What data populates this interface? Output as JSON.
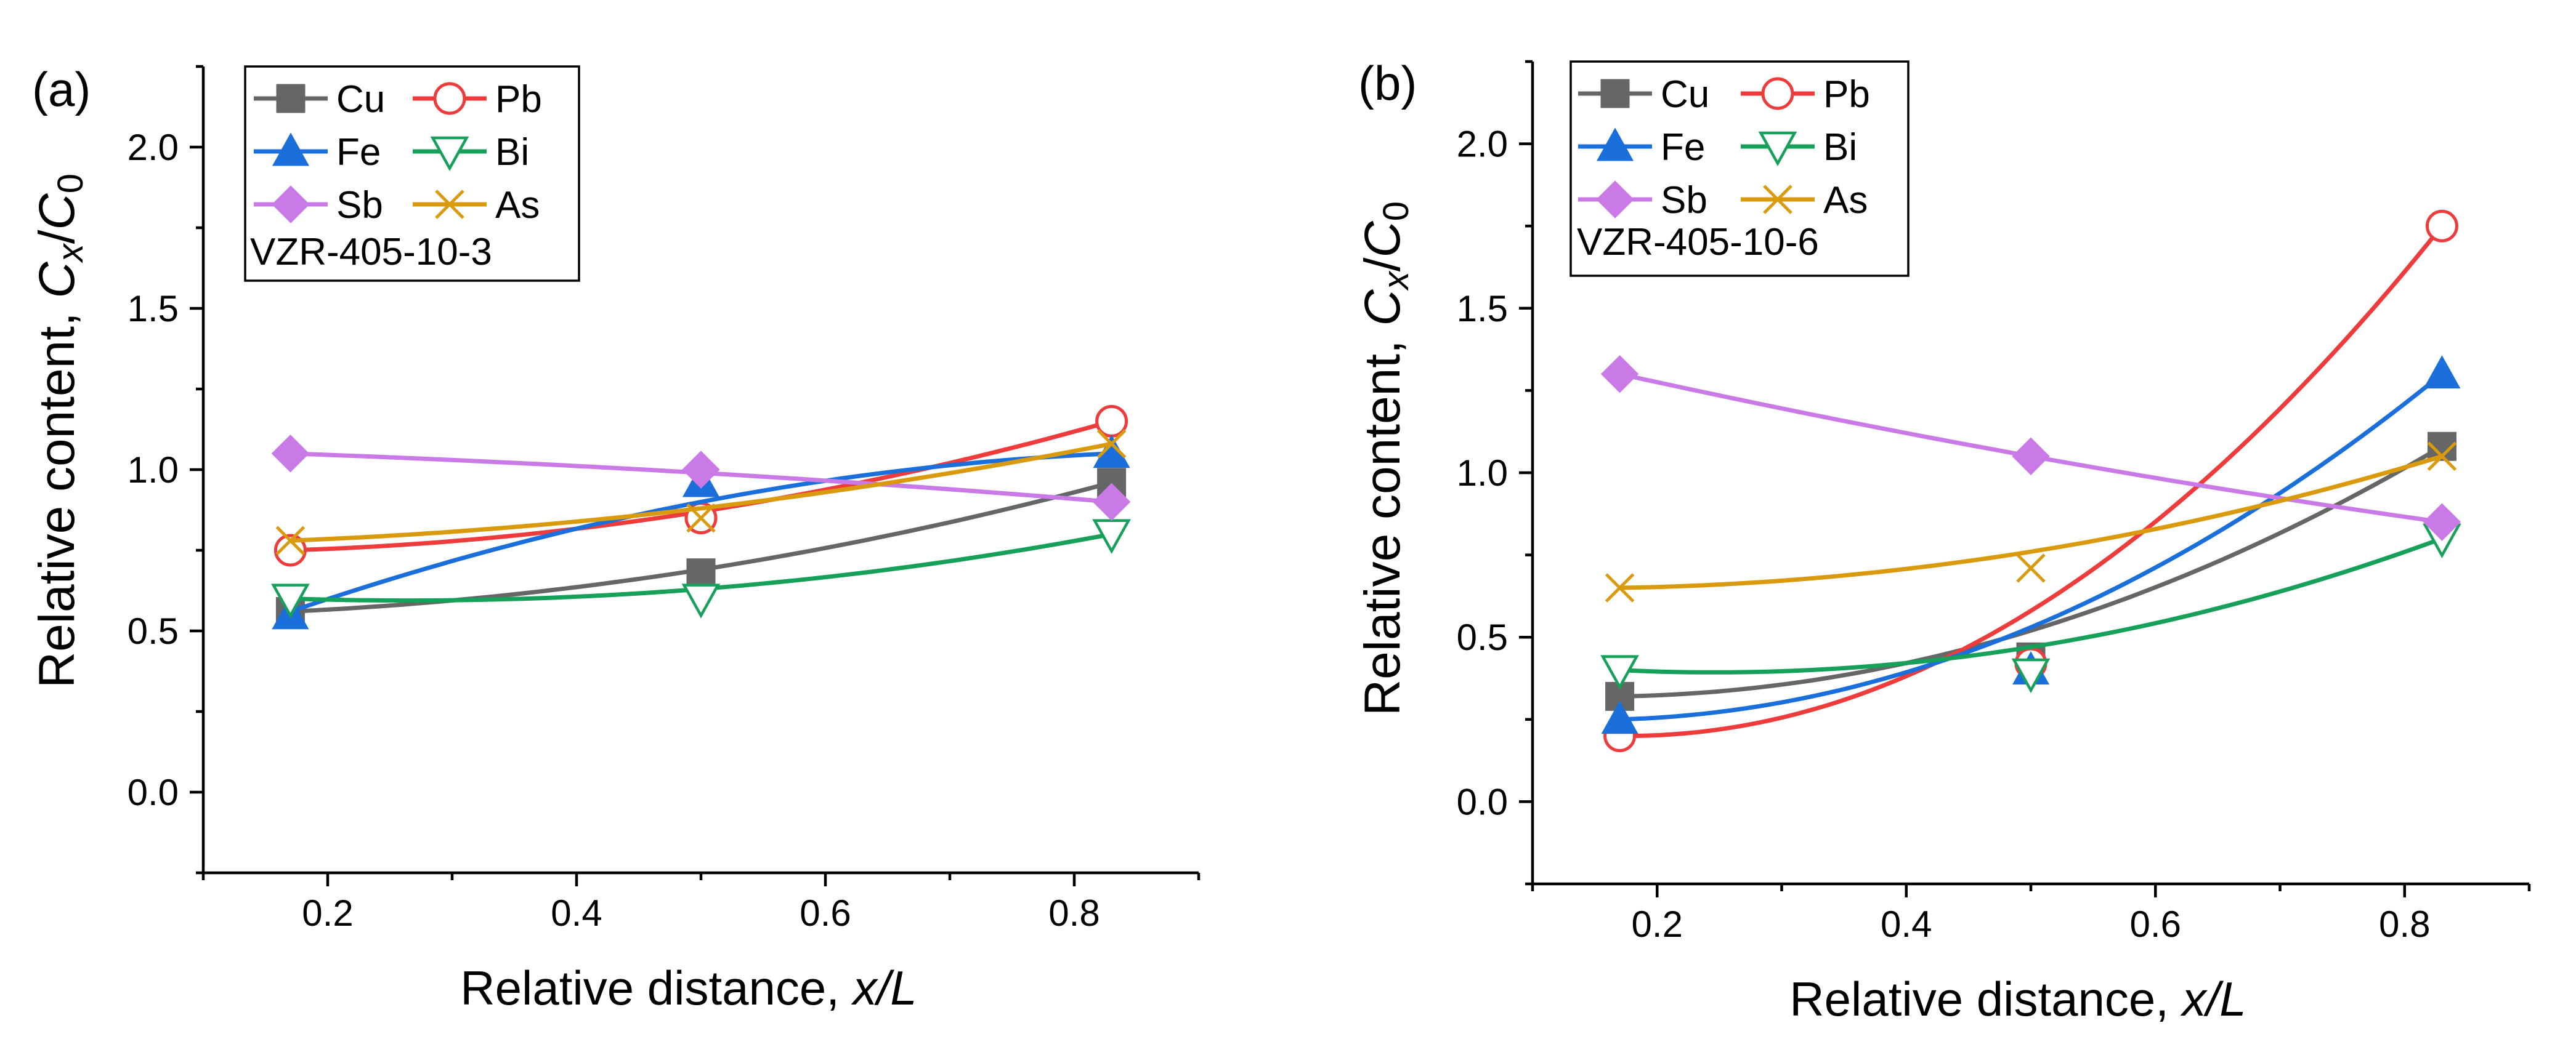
{
  "figure": {
    "x_axis_label_prefix": "Relative distance, ",
    "x_axis_label_var": "x/L",
    "y_axis_label_prefix": "Relative content, ",
    "y_axis_label_var_c": "C",
    "y_axis_label_sub_x": "x",
    "y_axis_label_slash": "/",
    "y_axis_label_sub_0": "0"
  },
  "colors": {
    "Cu": "#666666",
    "Pb": "#ee3b3b",
    "Fe": "#1a6fdb",
    "Bi": "#16a05a",
    "Sb": "#c97ae6",
    "As": "#d99a0e"
  },
  "chart_data": [
    {
      "type": "line",
      "panel_label": "(a)",
      "sample_label": "VZR-405-10-3",
      "xlabel": "Relative distance, x/L",
      "ylabel": "Relative content, Cx/C0",
      "xlim": [
        0.1,
        0.9
      ],
      "ylim": [
        -0.25,
        2.25
      ],
      "x_ticks": [
        0.2,
        0.4,
        0.6,
        0.8
      ],
      "x_tick_labels": [
        "0.2",
        "0.4",
        "0.6",
        "0.8"
      ],
      "y_ticks": [
        0.0,
        0.5,
        1.0,
        1.5,
        2.0
      ],
      "y_tick_labels": [
        "0.0",
        "0.5",
        "1.0",
        "1.5",
        "2.0"
      ],
      "legend_position": "top-left",
      "series": [
        {
          "name": "Cu",
          "marker": "square-filled",
          "x": [
            0.17,
            0.5,
            0.83
          ],
          "y": [
            0.56,
            0.68,
            0.96
          ],
          "fit": [
            0.56,
            0.69,
            0.96
          ]
        },
        {
          "name": "Pb",
          "marker": "circle-open",
          "x": [
            0.17,
            0.5,
            0.83
          ],
          "y": [
            0.75,
            0.85,
            1.15
          ],
          "fit": [
            0.75,
            0.87,
            1.15
          ]
        },
        {
          "name": "Fe",
          "marker": "triangle-up-filled",
          "x": [
            0.17,
            0.5,
            0.83
          ],
          "y": [
            0.55,
            0.96,
            1.05
          ],
          "fit": [
            0.56,
            0.9,
            1.05
          ]
        },
        {
          "name": "Bi",
          "marker": "triangle-down-open",
          "x": [
            0.17,
            0.5,
            0.83
          ],
          "y": [
            0.6,
            0.6,
            0.8
          ],
          "fit": [
            0.6,
            0.63,
            0.8
          ]
        },
        {
          "name": "Sb",
          "marker": "diamond-filled",
          "x": [
            0.17,
            0.5,
            0.83
          ],
          "y": [
            1.05,
            1.0,
            0.9
          ],
          "fit": [
            1.05,
            0.99,
            0.9
          ]
        },
        {
          "name": "As",
          "marker": "x",
          "x": [
            0.17,
            0.5,
            0.83
          ],
          "y": [
            0.78,
            0.85,
            1.08
          ],
          "fit": [
            0.78,
            0.88,
            1.08
          ]
        }
      ]
    },
    {
      "type": "line",
      "panel_label": "(b)",
      "sample_label": "VZR-405-10-6",
      "xlabel": "Relative distance, x/L",
      "ylabel": "Relative content, Cx/C0",
      "xlim": [
        0.1,
        0.9
      ],
      "ylim": [
        -0.25,
        2.25
      ],
      "x_ticks": [
        0.2,
        0.4,
        0.6,
        0.8
      ],
      "x_tick_labels": [
        "0.2",
        "0.4",
        "0.6",
        "0.8"
      ],
      "y_ticks": [
        0.0,
        0.5,
        1.0,
        1.5,
        2.0
      ],
      "y_tick_labels": [
        "0.0",
        "0.5",
        "1.0",
        "1.5",
        "2.0"
      ],
      "legend_position": "top-left",
      "series": [
        {
          "name": "Cu",
          "marker": "square-filled",
          "x": [
            0.17,
            0.5,
            0.83
          ],
          "y": [
            0.32,
            0.44,
            1.08
          ],
          "fit": [
            0.32,
            0.52,
            1.08
          ]
        },
        {
          "name": "Pb",
          "marker": "circle-open",
          "x": [
            0.17,
            0.5,
            0.83
          ],
          "y": [
            0.2,
            0.42,
            1.75
          ],
          "fit": [
            0.2,
            0.58,
            1.75
          ]
        },
        {
          "name": "Fe",
          "marker": "triangle-up-filled",
          "x": [
            0.17,
            0.5,
            0.83
          ],
          "y": [
            0.25,
            0.4,
            1.3
          ],
          "fit": [
            0.25,
            0.53,
            1.3
          ]
        },
        {
          "name": "Bi",
          "marker": "triangle-down-open",
          "x": [
            0.17,
            0.5,
            0.83
          ],
          "y": [
            0.4,
            0.39,
            0.8
          ],
          "fit": [
            0.4,
            0.47,
            0.8
          ]
        },
        {
          "name": "Sb",
          "marker": "diamond-filled",
          "x": [
            0.17,
            0.5,
            0.83
          ],
          "y": [
            1.3,
            1.05,
            0.85
          ],
          "fit": [
            1.3,
            1.05,
            0.85
          ]
        },
        {
          "name": "As",
          "marker": "x",
          "x": [
            0.17,
            0.5,
            0.83
          ],
          "y": [
            0.65,
            0.71,
            1.05
          ],
          "fit": [
            0.65,
            0.76,
            1.05
          ]
        }
      ]
    }
  ]
}
